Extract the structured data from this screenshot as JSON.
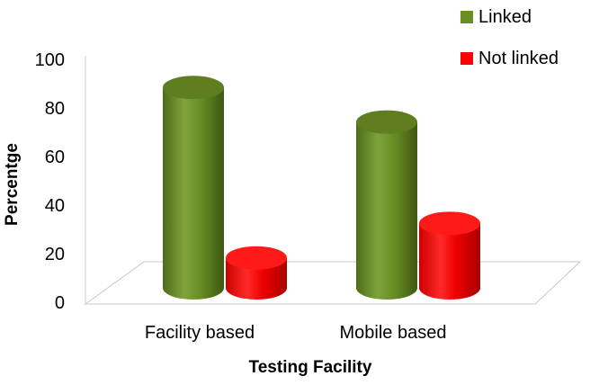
{
  "chart_data": {
    "type": "bar",
    "style": "3d-cylinder",
    "categories": [
      "Facility based",
      "Mobile based"
    ],
    "series": [
      {
        "name": "Linked",
        "values": [
          87,
          72
        ],
        "color": "#6b8e23"
      },
      {
        "name": "Not linked",
        "values": [
          13,
          28
        ],
        "color": "#ff0000"
      }
    ],
    "title": "",
    "xlabel": "Testing Facility",
    "ylabel": "Percentge",
    "ylim": [
      0,
      100
    ],
    "yticks": [
      0,
      20,
      40,
      60,
      80,
      100
    ],
    "grid": false,
    "legend_position": "top-right"
  }
}
